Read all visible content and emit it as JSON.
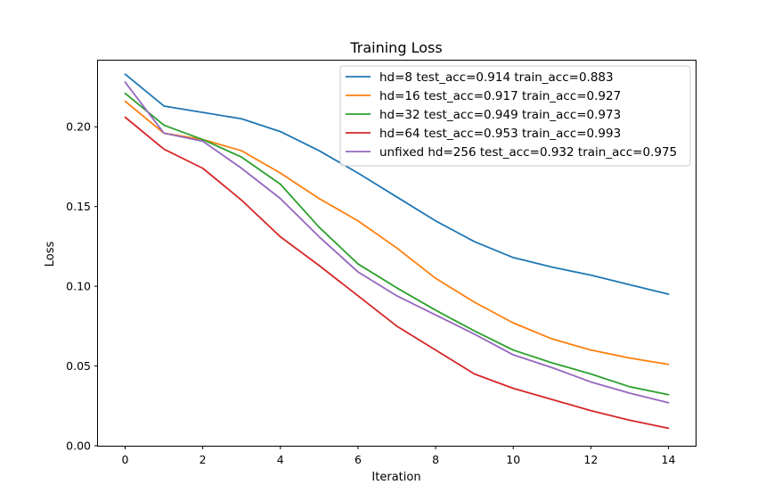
{
  "chart_data": {
    "type": "line",
    "title": "Training Loss",
    "xlabel": "Iteration",
    "ylabel": "Loss",
    "xlim": [
      -0.7,
      14.7
    ],
    "ylim": [
      0,
      0.2415
    ],
    "x_ticks": [
      0,
      2,
      4,
      6,
      8,
      10,
      12,
      14
    ],
    "y_ticks": [
      0.0,
      0.05,
      0.1,
      0.15,
      0.2
    ],
    "y_tick_labels": [
      "0.00",
      "0.05",
      "0.10",
      "0.15",
      "0.20"
    ],
    "x_tick_labels": [
      "0",
      "2",
      "4",
      "6",
      "8",
      "10",
      "12",
      "14"
    ],
    "grid": false,
    "legend_position": "top-right",
    "x": [
      0,
      1,
      2,
      3,
      4,
      5,
      6,
      7,
      8,
      9,
      10,
      11,
      12,
      13,
      14
    ],
    "series": [
      {
        "name": "hd=8 test_acc=0.914 train_acc=0.883",
        "color": "#1f77b4",
        "values": [
          0.233,
          0.213,
          0.209,
          0.205,
          0.197,
          0.185,
          0.171,
          0.156,
          0.141,
          0.128,
          0.118,
          0.112,
          0.107,
          0.101,
          0.095
        ]
      },
      {
        "name": "hd=16 test_acc=0.917 train_acc=0.927",
        "color": "#ff7f0e",
        "values": [
          0.216,
          0.196,
          0.192,
          0.185,
          0.171,
          0.155,
          0.141,
          0.124,
          0.105,
          0.09,
          0.077,
          0.067,
          0.06,
          0.055,
          0.051
        ]
      },
      {
        "name": "hd=32 test_acc=0.949 train_acc=0.973",
        "color": "#2ca02c",
        "values": [
          0.221,
          0.201,
          0.192,
          0.181,
          0.164,
          0.137,
          0.114,
          0.099,
          0.085,
          0.072,
          0.06,
          0.052,
          0.045,
          0.037,
          0.032
        ]
      },
      {
        "name": "hd=64 test_acc=0.953 train_acc=0.993",
        "color": "#d62728",
        "values": [
          0.206,
          0.186,
          0.174,
          0.154,
          0.131,
          0.113,
          0.094,
          0.075,
          0.06,
          0.045,
          0.036,
          0.029,
          0.022,
          0.016,
          0.011
        ]
      },
      {
        "name": "unfixed hd=256 test_acc=0.932 train_acc=0.975",
        "color": "#9467bd",
        "values": [
          0.228,
          0.196,
          0.191,
          0.174,
          0.155,
          0.131,
          0.109,
          0.094,
          0.082,
          0.07,
          0.057,
          0.049,
          0.04,
          0.033,
          0.027
        ]
      }
    ]
  }
}
